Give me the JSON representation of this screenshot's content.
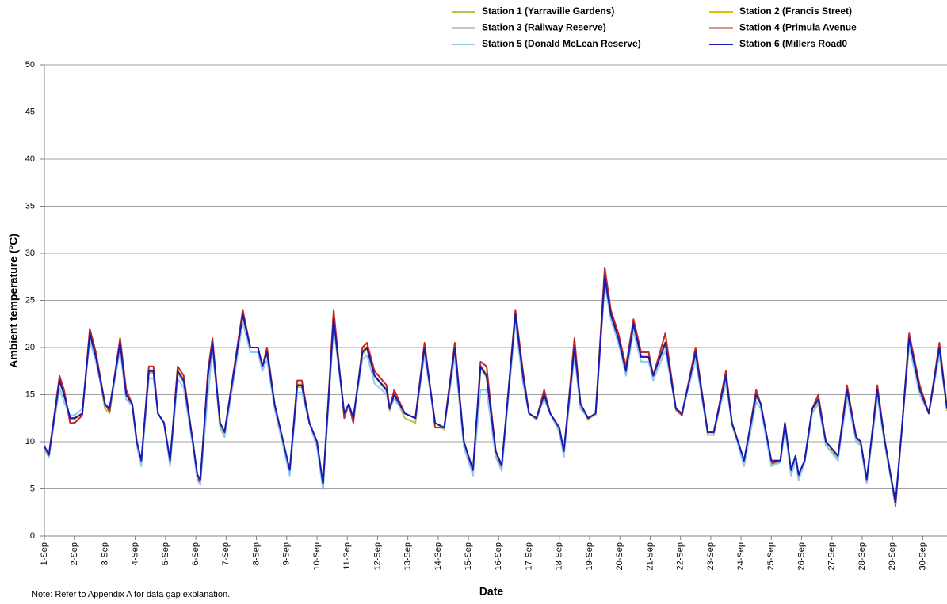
{
  "chart_data": {
    "type": "line",
    "y_label": "Ambient temperature (°C)",
    "x_label": "Date",
    "note": "Note: Refer to Appendix A for data gap explanation.",
    "xlim": [
      0,
      29.8
    ],
    "xticks": [
      {
        "value": 0,
        "label": "1-Sep"
      },
      {
        "value": 1,
        "label": "2-Sep"
      },
      {
        "value": 2,
        "label": "3-Sep"
      },
      {
        "value": 3,
        "label": "4-Sep"
      },
      {
        "value": 4,
        "label": "5-Sep"
      },
      {
        "value": 5,
        "label": "6-Sep"
      },
      {
        "value": 6,
        "label": "7-Sep"
      },
      {
        "value": 7,
        "label": "8-Sep"
      },
      {
        "value": 8,
        "label": "9-Sep"
      },
      {
        "value": 9,
        "label": "10-Sep"
      },
      {
        "value": 10,
        "label": "11-Sep"
      },
      {
        "value": 11,
        "label": "12-Sep"
      },
      {
        "value": 12,
        "label": "13-Sep"
      },
      {
        "value": 13,
        "label": "14-Sep"
      },
      {
        "value": 14,
        "label": "15-Sep"
      },
      {
        "value": 15,
        "label": "16-Sep"
      },
      {
        "value": 16,
        "label": "17-Sep"
      },
      {
        "value": 17,
        "label": "18-Sep"
      },
      {
        "value": 18,
        "label": "19-Sep"
      },
      {
        "value": 19,
        "label": "20-Sep"
      },
      {
        "value": 20,
        "label": "21-Sep"
      },
      {
        "value": 21,
        "label": "22-Sep"
      },
      {
        "value": 22,
        "label": "23-Sep"
      },
      {
        "value": 23,
        "label": "24-Sep"
      },
      {
        "value": 24,
        "label": "25-Sep"
      },
      {
        "value": 25,
        "label": "26-Sep"
      },
      {
        "value": 26,
        "label": "27-Sep"
      },
      {
        "value": 27,
        "label": "28-Sep"
      },
      {
        "value": 28,
        "label": "29-Sep"
      },
      {
        "value": 29,
        "label": "30-Sep"
      }
    ],
    "ylim": [
      0,
      50
    ],
    "yticks": [
      0,
      5,
      10,
      15,
      20,
      25,
      30,
      35,
      40,
      45,
      50
    ],
    "grid": true,
    "x": [
      0,
      0.15,
      0.5,
      0.65,
      0.85,
      1.0,
      1.25,
      1.5,
      1.7,
      2.0,
      2.15,
      2.5,
      2.7,
      2.9,
      3.05,
      3.2,
      3.45,
      3.6,
      3.75,
      3.95,
      4.15,
      4.4,
      4.6,
      4.9,
      5.05,
      5.15,
      5.4,
      5.55,
      5.8,
      5.95,
      6.55,
      6.8,
      7.05,
      7.2,
      7.35,
      7.6,
      8.1,
      8.35,
      8.5,
      8.75,
      9.0,
      9.2,
      9.55,
      9.9,
      10.05,
      10.2,
      10.5,
      10.65,
      10.9,
      11.3,
      11.4,
      11.55,
      11.9,
      12.25,
      12.55,
      12.9,
      13.2,
      13.55,
      13.85,
      14.15,
      14.4,
      14.6,
      14.9,
      15.1,
      15.55,
      15.8,
      16.0,
      16.25,
      16.5,
      16.7,
      17.0,
      17.15,
      17.5,
      17.7,
      17.95,
      18.2,
      18.5,
      18.7,
      18.95,
      19.2,
      19.45,
      19.7,
      19.95,
      20.1,
      20.5,
      20.85,
      21.05,
      21.5,
      21.9,
      22.1,
      22.5,
      22.7,
      23.1,
      23.5,
      23.65,
      24.0,
      24.3,
      24.45,
      24.65,
      24.8,
      24.9,
      25.1,
      25.35,
      25.55,
      25.8,
      26.2,
      26.5,
      26.8,
      26.95,
      27.15,
      27.5,
      27.75,
      28.1,
      28.3,
      28.55,
      28.9,
      29.2,
      29.55,
      29.8
    ],
    "series": [
      {
        "name": "Station 1 (Yarraville Gardens)",
        "color": "#b3c64a",
        "values": [
          9.2,
          8.3,
          16.3,
          15,
          12.5,
          12.5,
          13,
          21.3,
          19,
          13.5,
          13,
          20.3,
          15,
          14,
          9.7,
          7.6,
          17.3,
          17.3,
          13,
          12,
          7.6,
          17.3,
          16.3,
          9.7,
          6.1,
          5.5,
          16.8,
          20.3,
          11.5,
          10.5,
          23.3,
          20,
          20,
          18,
          19.3,
          14,
          6.6,
          15.8,
          15.8,
          12,
          9.6,
          5.2,
          22.8,
          13,
          14,
          12.5,
          19.3,
          19.8,
          17,
          15.3,
          13.3,
          15,
          12.5,
          12,
          19.8,
          12,
          11.3,
          19.8,
          9.6,
          6.6,
          17.8,
          16.8,
          8.6,
          7.1,
          23.3,
          17,
          13,
          12.3,
          15,
          13,
          11.3,
          8.6,
          19.8,
          14,
          12.3,
          13,
          27.3,
          23.3,
          21,
          17.3,
          22.3,
          19,
          19,
          17,
          20.3,
          13.3,
          12.8,
          19.3,
          10.7,
          10.7,
          16.8,
          11.8,
          7.6,
          14.8,
          14,
          7.6,
          7.8,
          12,
          6.6,
          8.3,
          6.1,
          7.8,
          13,
          14.3,
          9.6,
          8.3,
          15.3,
          10.3,
          9.6,
          5.6,
          15.3,
          9.6,
          3.3,
          11,
          20.8,
          15.3,
          13,
          19.8,
          13.3
        ]
      },
      {
        "name": "Station 2 (Francis Street)",
        "color": "#e8c200",
        "values": [
          9.4,
          8.5,
          16.6,
          15,
          12.4,
          12.4,
          13,
          21.6,
          19,
          14,
          13.4,
          20.6,
          15,
          14,
          9.9,
          7.9,
          17.6,
          17.6,
          13,
          12,
          7.9,
          17.6,
          16.6,
          10,
          6.4,
          5.9,
          17.1,
          20.6,
          12,
          11,
          23.6,
          20,
          20,
          18,
          19.6,
          14,
          6.9,
          16.1,
          16.1,
          12,
          9.9,
          5.4,
          23.1,
          13,
          14,
          12.4,
          19.6,
          20.1,
          17,
          15.6,
          13.5,
          15.1,
          13,
          12.5,
          20.1,
          12,
          11.5,
          20.1,
          9.9,
          6.9,
          18.1,
          17.1,
          8.9,
          7.4,
          23.6,
          17.1,
          13,
          12.5,
          15.1,
          13,
          11.5,
          8.9,
          20.1,
          14,
          12.5,
          13,
          27.6,
          23.6,
          21,
          17.6,
          22.6,
          19,
          19,
          17,
          20.6,
          13.5,
          13,
          19.6,
          11,
          11,
          17.1,
          12,
          7.9,
          15.1,
          14,
          7.9,
          8,
          12,
          6.9,
          8.5,
          6.4,
          8,
          13.5,
          14.6,
          10,
          8.5,
          15.6,
          10.5,
          10,
          5.9,
          15.6,
          10,
          3.4,
          11,
          21.1,
          15.6,
          13,
          20.1,
          13.5
        ]
      },
      {
        "name": "Station 3 (Railway Reserve)",
        "color": "#8c8c8c",
        "values": [
          9.5,
          8.6,
          16.5,
          15,
          12.5,
          12.5,
          13,
          21.5,
          19,
          14,
          13.5,
          20.5,
          15,
          14,
          10,
          8,
          17.5,
          17.5,
          13,
          12,
          8,
          17.5,
          16.5,
          10,
          6.5,
          6,
          17,
          20.5,
          12,
          11,
          23.5,
          20,
          20,
          18,
          19.5,
          14,
          7,
          16,
          16,
          12,
          10,
          5.5,
          23,
          13,
          14,
          12.5,
          19.5,
          20,
          17,
          15.5,
          13.5,
          15,
          13,
          12.5,
          20,
          12,
          11.5,
          20,
          10,
          7,
          18,
          17,
          9,
          7.5,
          23.5,
          17,
          13,
          12.5,
          15,
          13,
          11.5,
          9,
          20,
          14,
          12.5,
          13,
          27.5,
          23.5,
          21,
          17.5,
          22.5,
          19,
          19,
          17,
          20.5,
          13.5,
          13,
          19.5,
          11,
          11,
          17,
          12,
          8,
          15,
          14,
          8,
          8,
          12,
          7,
          8.5,
          6.5,
          8,
          13.5,
          14.5,
          10,
          8.5,
          15.5,
          10.5,
          10,
          6,
          15.5,
          10,
          3.5,
          11,
          21,
          15.5,
          13,
          20,
          13.5
        ]
      },
      {
        "name": "Station 4 (Primula Avenue",
        "color": "#c0282a",
        "values": [
          9.5,
          8.6,
          17,
          15.5,
          12,
          12,
          12.8,
          22,
          19.5,
          14,
          13.2,
          21,
          15.5,
          14,
          10,
          7.7,
          18,
          18,
          13,
          12,
          7.7,
          18,
          17,
          10,
          6.2,
          5.7,
          17.5,
          21,
          12,
          11,
          24,
          20,
          20,
          18,
          20,
          14,
          6.7,
          16.5,
          16.5,
          12,
          10,
          5,
          24,
          12.5,
          14,
          12,
          20,
          20.5,
          17.5,
          16,
          13.5,
          15.5,
          13,
          12.5,
          20.5,
          11.5,
          11.5,
          20.5,
          10,
          6.7,
          18.5,
          18,
          9,
          7.2,
          24,
          17.5,
          13,
          12.5,
          15.5,
          13,
          11.5,
          8.7,
          21,
          14,
          12.5,
          13,
          28.5,
          24,
          21.5,
          18,
          23,
          19.5,
          19.5,
          17,
          21.5,
          13.5,
          12.8,
          20,
          11,
          11,
          17.5,
          12,
          7.7,
          15.5,
          14,
          7.7,
          8,
          12,
          6.7,
          8.5,
          6.2,
          8,
          13.5,
          15,
          10,
          8.5,
          16,
          10.5,
          10,
          5.7,
          16,
          10,
          3.2,
          11,
          21.5,
          16,
          13,
          20.5,
          13.5
        ]
      },
      {
        "name": "Station 5 (Donald McLean Reserve)",
        "color": "#92c9ea",
        "values": [
          9.3,
          8.4,
          15.7,
          14.2,
          12.8,
          12.8,
          13.5,
          20.7,
          18.5,
          14,
          13.5,
          19.7,
          14.5,
          13.8,
          9.6,
          7.4,
          16.7,
          16.7,
          13,
          12,
          7.4,
          16.7,
          15.7,
          9.6,
          5.9,
          5.4,
          15,
          19.7,
          12,
          10.5,
          22.7,
          19.5,
          19.5,
          17.5,
          18.7,
          13.5,
          6.4,
          15.2,
          15.2,
          12,
          9.4,
          4.9,
          22.2,
          13,
          14,
          12.5,
          18.7,
          19.2,
          16.2,
          15,
          13.5,
          14.5,
          13,
          12.5,
          19.2,
          12,
          11.5,
          19,
          9.4,
          6.4,
          15.5,
          15.5,
          8.4,
          6.9,
          22.7,
          16.2,
          13,
          12.5,
          14.5,
          13,
          11,
          8.4,
          19.2,
          13.5,
          12.5,
          12.8,
          26.7,
          23,
          20.5,
          17,
          21.7,
          18.5,
          18.5,
          16.5,
          19.7,
          13.5,
          13,
          18.7,
          11,
          11,
          16.2,
          12,
          7.4,
          14.2,
          13.5,
          7.4,
          7.8,
          11.5,
          6.4,
          8,
          5.9,
          7.8,
          13,
          14,
          9.6,
          8,
          14.7,
          10,
          9.6,
          5.6,
          14.7,
          9.6,
          3.4,
          11,
          20.2,
          15,
          13,
          19.2,
          13.5
        ]
      },
      {
        "name": "Station 6 (Millers Road0",
        "color": "#1b1bb0",
        "values": [
          9.5,
          8.6,
          16.5,
          15,
          12.5,
          12.5,
          13,
          21.5,
          19,
          14,
          13.5,
          20.5,
          15,
          14,
          10,
          8,
          17.5,
          17.5,
          13,
          12,
          8,
          17.5,
          16.5,
          10,
          6.5,
          6,
          17,
          20.5,
          12,
          11,
          23.5,
          20,
          20,
          18,
          19.5,
          14,
          7,
          16,
          16,
          12,
          10,
          5.5,
          23,
          13,
          14,
          12.5,
          19.5,
          20,
          17,
          15.5,
          13.5,
          15,
          13,
          12.5,
          20,
          12,
          11.5,
          20,
          10,
          7,
          18,
          17,
          9,
          7.5,
          23.5,
          17,
          13,
          12.5,
          15,
          13,
          11.5,
          9,
          20,
          14,
          12.5,
          13,
          27.5,
          23.5,
          21,
          17.5,
          22.5,
          19,
          19,
          17,
          20.5,
          13.5,
          13,
          19.5,
          11,
          11,
          17,
          12,
          8,
          15,
          14,
          8,
          8,
          12,
          7,
          8.5,
          6.5,
          8,
          13.5,
          14.5,
          10,
          8.5,
          15.5,
          10.5,
          10,
          6,
          15.5,
          10,
          3.5,
          11,
          21,
          15.5,
          13,
          20,
          13.5
        ]
      }
    ]
  }
}
